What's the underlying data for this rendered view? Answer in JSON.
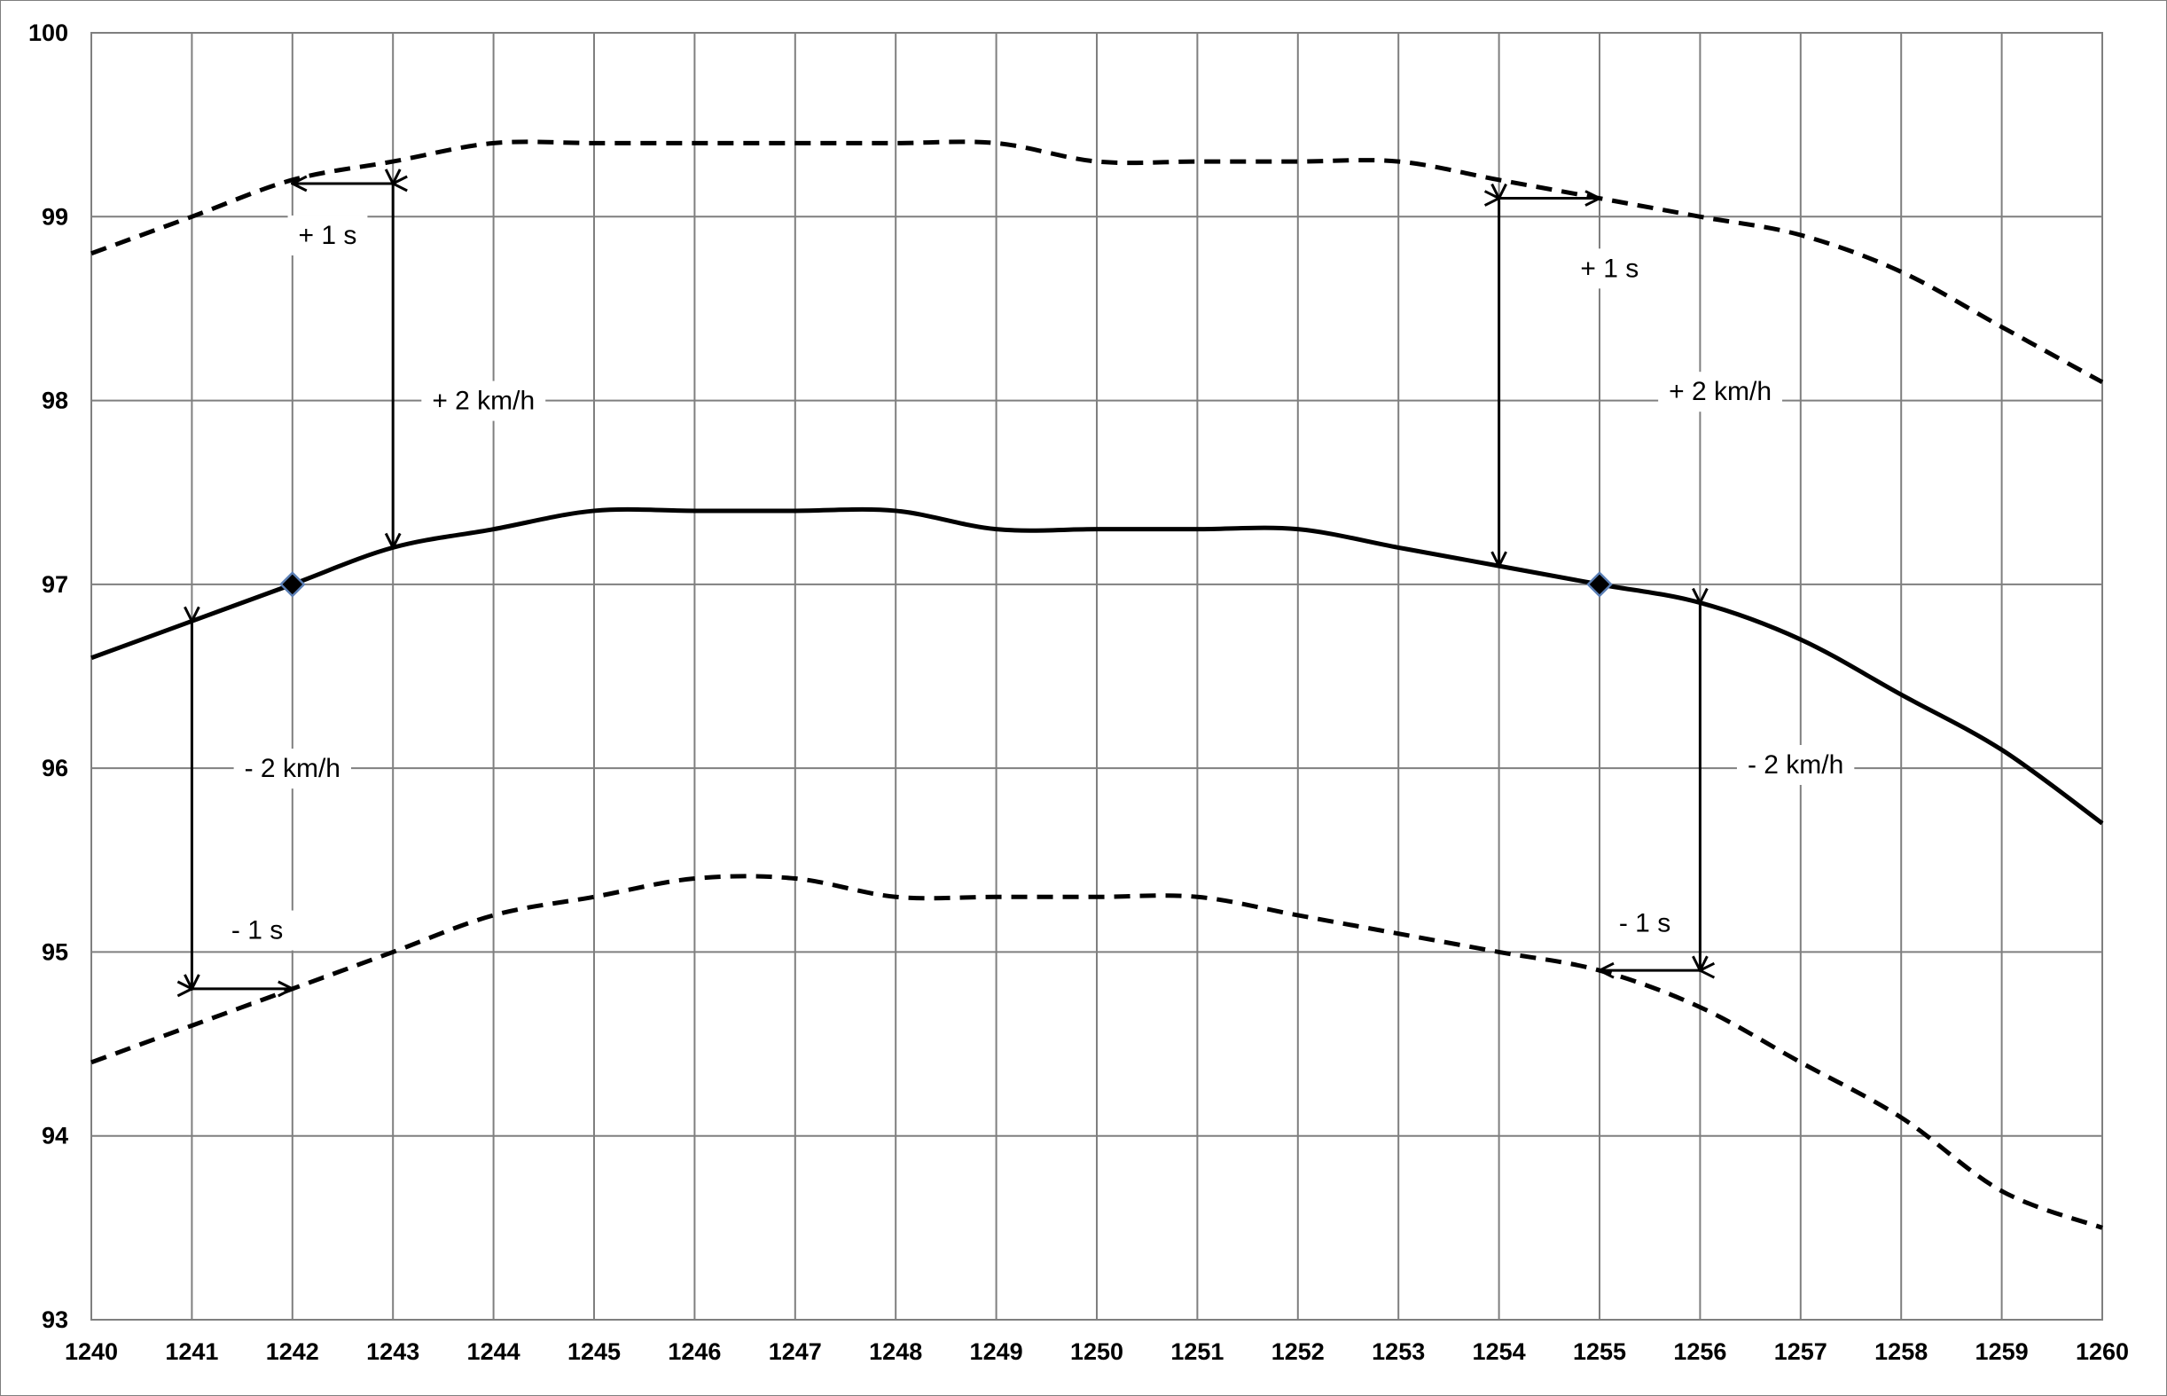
{
  "chart_data": {
    "type": "line",
    "xlim": [
      1240,
      1260
    ],
    "ylim": [
      93,
      100
    ],
    "grid": true,
    "x_ticks": [
      "1240",
      "1241",
      "1242",
      "1243",
      "1244",
      "1245",
      "1246",
      "1247",
      "1248",
      "1249",
      "1250",
      "1251",
      "1252",
      "1253",
      "1254",
      "1255",
      "1256",
      "1257",
      "1258",
      "1259",
      "1260"
    ],
    "y_ticks": [
      "93",
      "94",
      "95",
      "96",
      "97",
      "98",
      "99",
      "100"
    ],
    "series": [
      {
        "style": "solid",
        "points": [
          [
            1240,
            96.6
          ],
          [
            1241,
            96.8
          ],
          [
            1242,
            97.0
          ],
          [
            1243,
            97.2
          ],
          [
            1244,
            97.3
          ],
          [
            1245,
            97.4
          ],
          [
            1246,
            97.4
          ],
          [
            1247,
            97.4
          ],
          [
            1248,
            97.4
          ],
          [
            1249,
            97.3
          ],
          [
            1250,
            97.3
          ],
          [
            1251,
            97.3
          ],
          [
            1252,
            97.3
          ],
          [
            1253,
            97.2
          ],
          [
            1254,
            97.1
          ],
          [
            1255,
            97.0
          ],
          [
            1256,
            96.9
          ],
          [
            1257,
            96.7
          ],
          [
            1258,
            96.4
          ],
          [
            1259,
            96.1
          ],
          [
            1260,
            95.7
          ]
        ]
      },
      {
        "style": "dashed",
        "points": [
          [
            1240,
            98.8
          ],
          [
            1241,
            99.0
          ],
          [
            1242,
            99.2
          ],
          [
            1243,
            99.3
          ],
          [
            1244,
            99.4
          ],
          [
            1245,
            99.4
          ],
          [
            1246,
            99.4
          ],
          [
            1247,
            99.4
          ],
          [
            1248,
            99.4
          ],
          [
            1249,
            99.4
          ],
          [
            1250,
            99.3
          ],
          [
            1251,
            99.3
          ],
          [
            1252,
            99.3
          ],
          [
            1253,
            99.3
          ],
          [
            1254,
            99.2
          ],
          [
            1255,
            99.1
          ],
          [
            1256,
            99.0
          ],
          [
            1257,
            98.9
          ],
          [
            1258,
            98.7
          ],
          [
            1259,
            98.4
          ],
          [
            1260,
            98.1
          ]
        ]
      },
      {
        "style": "dashed",
        "points": [
          [
            1240,
            94.4
          ],
          [
            1241,
            94.6
          ],
          [
            1242,
            94.8
          ],
          [
            1243,
            95.0
          ],
          [
            1244,
            95.2
          ],
          [
            1245,
            95.3
          ],
          [
            1246,
            95.4
          ],
          [
            1247,
            95.4
          ],
          [
            1248,
            95.3
          ],
          [
            1249,
            95.3
          ],
          [
            1250,
            95.3
          ],
          [
            1251,
            95.3
          ],
          [
            1252,
            95.2
          ],
          [
            1253,
            95.1
          ],
          [
            1254,
            95.0
          ],
          [
            1255,
            94.9
          ],
          [
            1256,
            94.7
          ],
          [
            1257,
            94.4
          ],
          [
            1258,
            94.1
          ],
          [
            1259,
            93.7
          ],
          [
            1260,
            93.5
          ]
        ]
      }
    ],
    "markers": [
      [
        1242,
        97.0
      ],
      [
        1255,
        97.0
      ]
    ],
    "arrows": [
      {
        "from": [
          1243,
          99.18
        ],
        "to": [
          1242,
          99.18
        ]
      },
      {
        "from": [
          1243,
          99.18
        ],
        "to": [
          1243,
          97.2
        ]
      },
      {
        "from": [
          1241,
          96.8
        ],
        "to": [
          1241,
          94.8
        ]
      },
      {
        "from": [
          1241,
          94.8
        ],
        "to": [
          1242,
          94.8
        ]
      },
      {
        "from": [
          1254,
          99.1
        ],
        "to": [
          1255,
          99.1
        ]
      },
      {
        "from": [
          1254,
          99.1
        ],
        "to": [
          1254,
          97.1
        ]
      },
      {
        "from": [
          1256,
          96.9
        ],
        "to": [
          1256,
          94.9
        ]
      },
      {
        "from": [
          1256,
          94.9
        ],
        "to": [
          1255,
          94.9
        ]
      }
    ],
    "annotations": [
      {
        "text": "+ 1 s",
        "x": 1242.35,
        "y": 98.9
      },
      {
        "text": "+ 2 km/h",
        "x": 1243.9,
        "y": 98.0
      },
      {
        "text": "- 2 km/h",
        "x": 1242.0,
        "y": 96.0
      },
      {
        "text": "- 1 s",
        "x": 1241.65,
        "y": 95.12
      },
      {
        "text": "+ 1 s",
        "x": 1255.1,
        "y": 98.72
      },
      {
        "text": "+ 2 km/h",
        "x": 1256.2,
        "y": 98.05
      },
      {
        "text": "- 2 km/h",
        "x": 1256.95,
        "y": 96.02
      },
      {
        "text": "- 1 s",
        "x": 1255.45,
        "y": 95.16
      }
    ],
    "colors": {
      "grid": "#7f7f7f",
      "line": "#000000",
      "marker_fill": "#000000",
      "marker_stroke": "#5b7fb5",
      "label_bg": "#ffffff"
    }
  }
}
